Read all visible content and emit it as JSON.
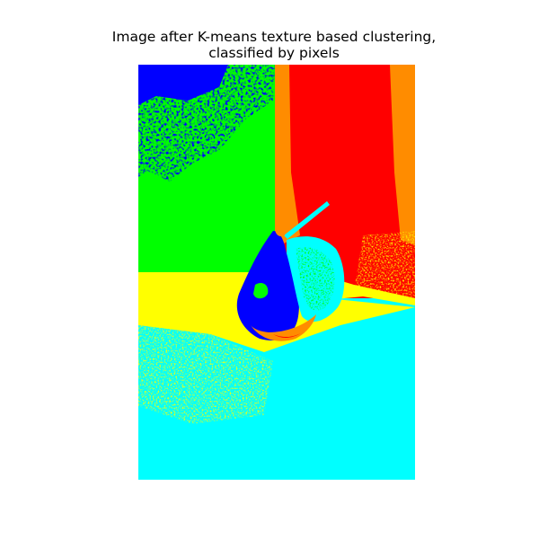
{
  "title": {
    "line1": "Image after K-means texture based clustering,",
    "line2": "classified by pixels"
  },
  "image": {
    "description": "Segmented photo of a pear on a table against a wall, colored by cluster label",
    "cluster_colors": {
      "cluster_blue": "#0000ff",
      "cluster_green": "#00ff00",
      "cluster_red": "#ff0000",
      "cluster_orange": "#ff8c00",
      "cluster_yellow": "#ffff00",
      "cluster_cyan": "#00ffff"
    },
    "num_clusters": 6
  }
}
